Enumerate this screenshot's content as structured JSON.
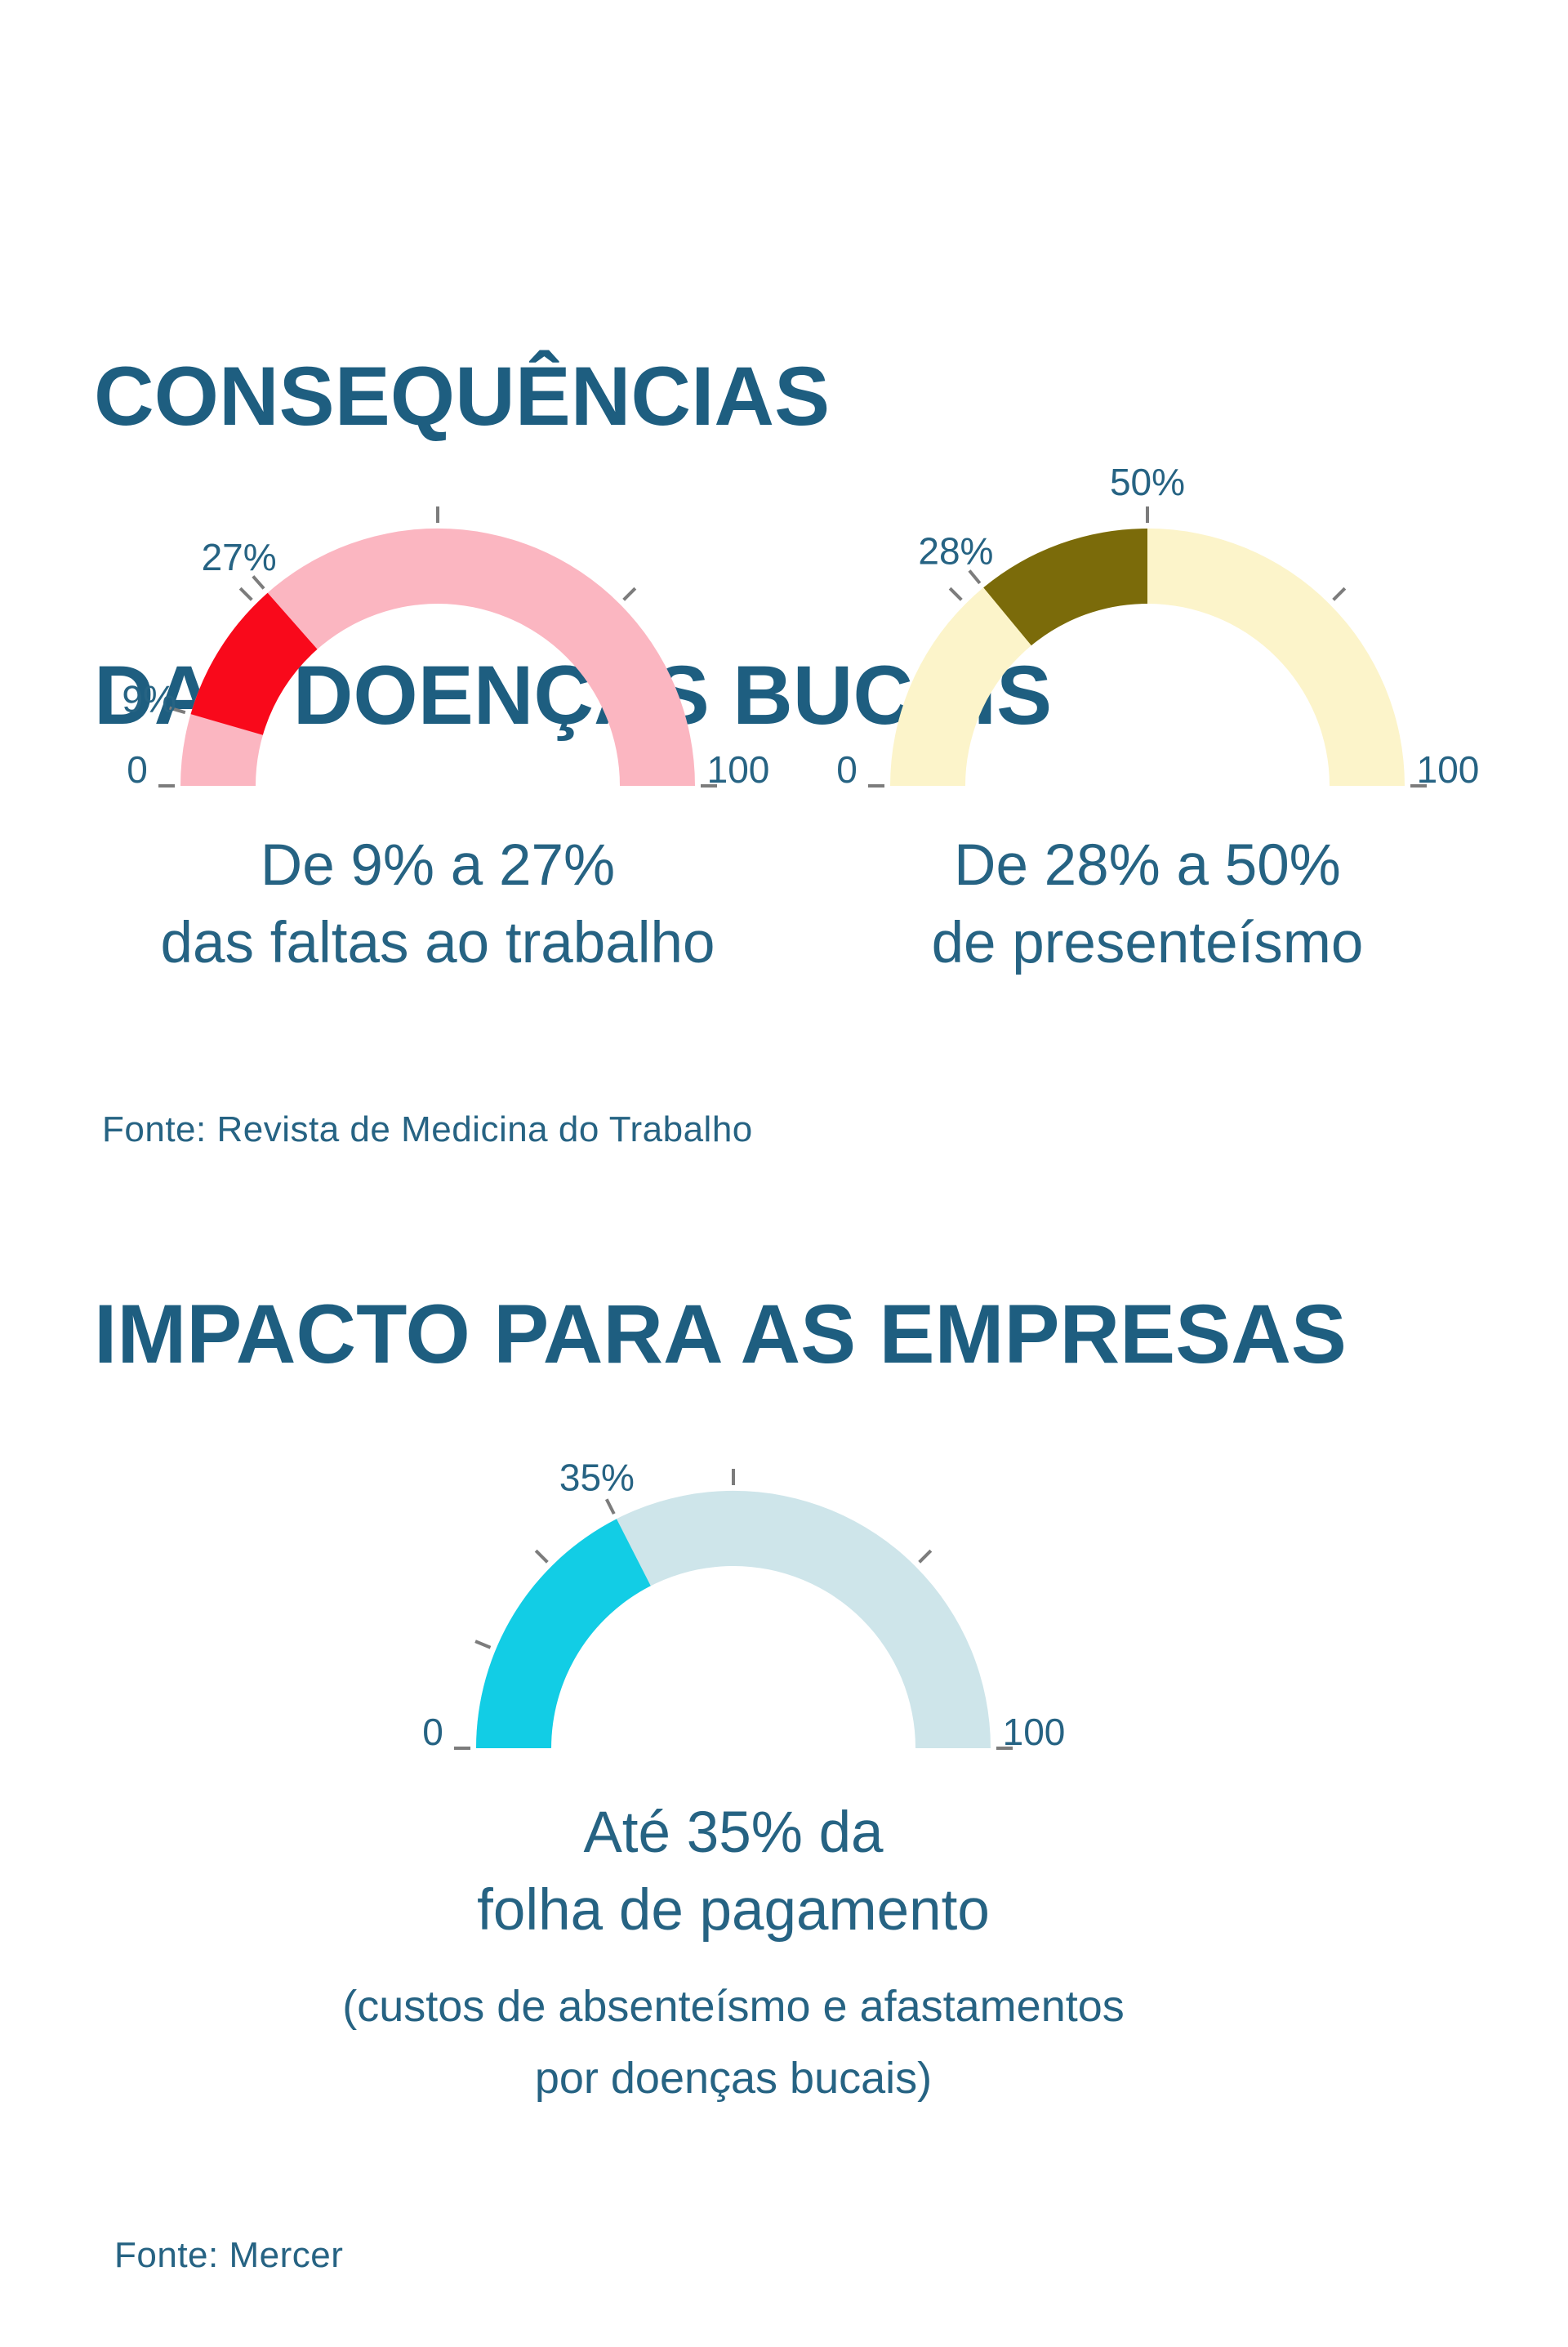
{
  "colors": {
    "background": "#ffffff",
    "title": "#1e5e80",
    "text": "#266383",
    "tick": "#7c7c7c"
  },
  "section_consequencias": {
    "title_line1": "CONSEQUÊNCIAS",
    "title_line2": "DAS DOENÇAS BUCAIS",
    "source": "Fonte: Revista de Medicina do Trabalho"
  },
  "section_impacto": {
    "title": "IMPACTO PARA AS EMPRESAS",
    "source": "Fonte: Mercer"
  },
  "chart_data": [
    {
      "type": "gauge",
      "min": 0,
      "max": 100,
      "track_color": "#fbb6c1",
      "segment": {
        "from": 9,
        "to": 27,
        "color": "#f9091b"
      },
      "ticks": [
        0,
        9,
        25,
        27,
        50,
        75,
        100
      ],
      "tick_labels": [
        {
          "value": 9,
          "text": "9%"
        },
        {
          "value": 27,
          "text": "27%"
        }
      ],
      "axis_labels": [
        {
          "value": 0,
          "text": "0"
        },
        {
          "value": 100,
          "text": "100"
        }
      ],
      "caption": [
        "De 9% a 27%",
        "das faltas ao trabalho"
      ]
    },
    {
      "type": "gauge",
      "min": 0,
      "max": 100,
      "track_color": "#fcf4ca",
      "segment": {
        "from": 28,
        "to": 50,
        "color": "#7b6b0a"
      },
      "ticks": [
        0,
        25,
        28,
        50,
        75,
        100
      ],
      "tick_labels": [
        {
          "value": 28,
          "text": "28%"
        },
        {
          "value": 50,
          "text": "50%"
        }
      ],
      "axis_labels": [
        {
          "value": 0,
          "text": "0"
        },
        {
          "value": 100,
          "text": "100"
        }
      ],
      "caption": [
        "De 28% a 50%",
        "de presenteísmo"
      ]
    },
    {
      "type": "gauge",
      "min": 0,
      "max": 100,
      "track_color": "#cee5ea",
      "segment": {
        "from": 0,
        "to": 35,
        "color": "#12cde5"
      },
      "ticks": [
        0,
        12.5,
        25,
        35,
        50,
        75,
        100
      ],
      "tick_labels": [
        {
          "value": 35,
          "text": "35%"
        }
      ],
      "axis_labels": [
        {
          "value": 0,
          "text": "0"
        },
        {
          "value": 100,
          "text": "100"
        }
      ],
      "caption": [
        "Até 35% da",
        "folha de pagamento"
      ],
      "subcaption": [
        "(custos de absenteísmo e afastamentos",
        "por doenças bucais)"
      ]
    }
  ]
}
